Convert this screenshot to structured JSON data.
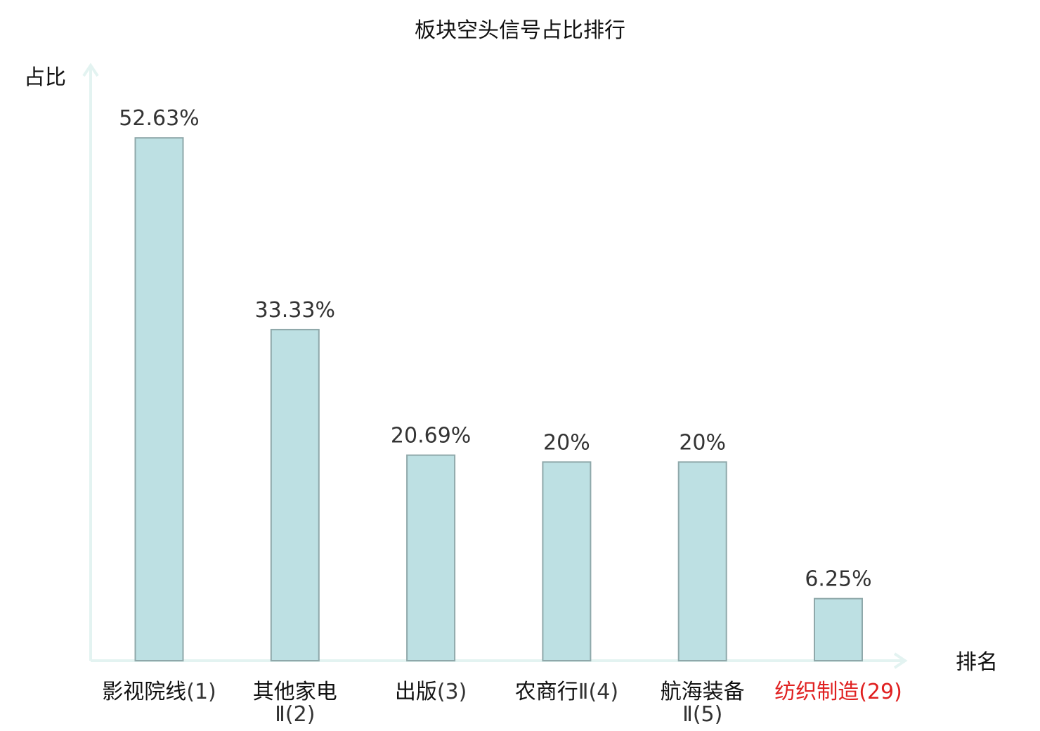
{
  "chart_data": {
    "type": "bar",
    "title": "板块空头信号占比排行",
    "ylabel": "占比",
    "xlabel": "排名",
    "ylim": [
      0,
      60
    ],
    "grid": false,
    "categories": [
      {
        "name": "影视院线",
        "rank": "(1)",
        "highlight": false
      },
      {
        "name": "其他家电",
        "rank": "Ⅱ(2)",
        "highlight": false
      },
      {
        "name": "出版",
        "rank": "(3)",
        "highlight": false
      },
      {
        "name": "农商行",
        "rank": "Ⅱ(4)",
        "highlight": false
      },
      {
        "name": "航海装备",
        "rank": "Ⅱ(5)",
        "highlight": false
      },
      {
        "name": "纺织制造",
        "rank": "(29)",
        "highlight": true
      }
    ],
    "values": [
      52.63,
      33.33,
      20.69,
      20,
      20,
      6.25
    ],
    "value_labels": [
      "52.63%",
      "33.33%",
      "20.69%",
      "20%",
      "20%",
      "6.25%"
    ]
  },
  "colors": {
    "bar_fill": "#bde0e3",
    "bar_stroke": "#8fa8aa",
    "axis": "#e3f3f1",
    "text": "#111111",
    "rank_text": "#333333",
    "highlight": "#e02020"
  }
}
